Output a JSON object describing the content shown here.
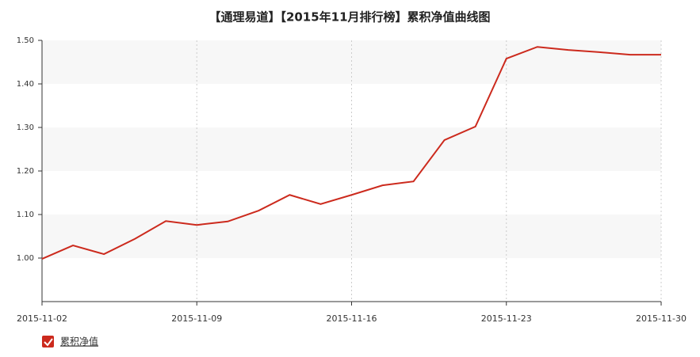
{
  "chart_data": {
    "type": "line",
    "title": "【通理易道】【2015年11月排行榜】累积净值曲线图",
    "categories": [
      "2015-11-02",
      null,
      null,
      null,
      null,
      "2015-11-09",
      null,
      null,
      null,
      null,
      "2015-11-16",
      null,
      null,
      null,
      null,
      "2015-11-23",
      null,
      null,
      null,
      null,
      "2015-11-30"
    ],
    "series": [
      {
        "name": "累积净值",
        "color": "#cc2a1d",
        "values": [
          0.998,
          1.029,
          1.009,
          1.044,
          1.085,
          1.076,
          1.084,
          1.109,
          1.145,
          1.124,
          1.145,
          1.167,
          1.176,
          1.271,
          1.302,
          1.458,
          1.485,
          1.478,
          1.473,
          1.467,
          1.467
        ]
      }
    ],
    "ylim": [
      0.9,
      1.5
    ],
    "yticks": [
      {
        "value": 1.0,
        "label": "1.00"
      },
      {
        "value": 1.1,
        "label": "1.10"
      },
      {
        "value": 1.2,
        "label": "1.20"
      },
      {
        "value": 1.3,
        "label": "1.30"
      },
      {
        "value": 1.4,
        "label": "1.40"
      },
      {
        "value": 1.5,
        "label": "1.50"
      }
    ],
    "grid": true
  }
}
